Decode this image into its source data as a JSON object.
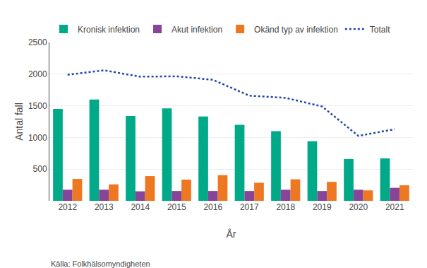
{
  "chart_data": {
    "type": "bar",
    "categories": [
      "2012",
      "2013",
      "2014",
      "2015",
      "2016",
      "2017",
      "2018",
      "2019",
      "2020",
      "2021"
    ],
    "series": [
      {
        "name": "Kronisk infektion",
        "type": "bar",
        "color": "#00AA88",
        "values": [
          1450,
          1600,
          1340,
          1460,
          1330,
          1200,
          1100,
          940,
          660,
          670
        ]
      },
      {
        "name": "Akut infektion",
        "type": "bar",
        "color": "#884499",
        "values": [
          175,
          175,
          150,
          155,
          155,
          155,
          175,
          155,
          175,
          205
        ]
      },
      {
        "name": "Okänd typ av infektion",
        "type": "bar",
        "color": "#EE7722",
        "values": [
          345,
          260,
          390,
          335,
          405,
          285,
          340,
          300,
          165,
          245
        ]
      },
      {
        "name": "Totalt",
        "type": "line",
        "line_style": "dotted",
        "color": "#2244AA",
        "values": [
          1990,
          2060,
          1960,
          1965,
          1910,
          1660,
          1625,
          1490,
          1025,
          1130
        ]
      }
    ],
    "xlabel": "År",
    "ylabel": "Antal fall",
    "ylim": [
      0,
      2500
    ],
    "yticks": [
      500,
      1000,
      1500,
      2000,
      2500
    ],
    "grid": true,
    "legend": "top",
    "annotations": [
      "Källa: Folkhälsomyndigheten"
    ]
  }
}
